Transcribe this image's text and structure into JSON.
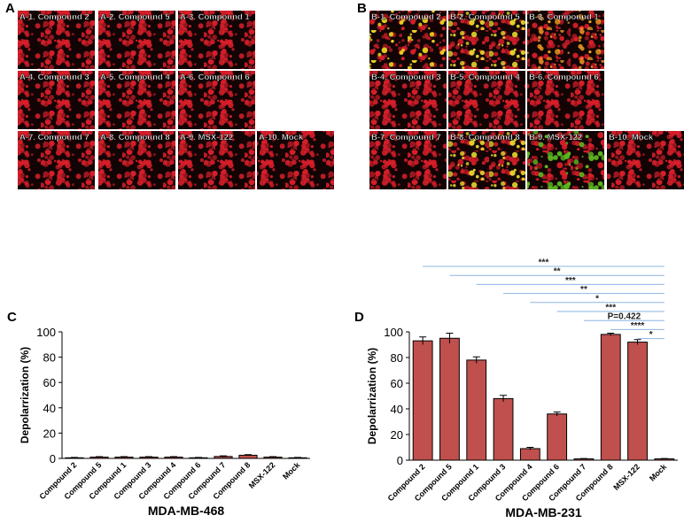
{
  "image_panels": [
    {
      "letter": "A",
      "images": [
        {
          "label": "A-1. Compound 2",
          "color": "#d81e2a"
        },
        {
          "label": "A-2. Compound 5",
          "color": "#d81e2a"
        },
        {
          "label": "A-3. Compound 1",
          "color": "#d81e2a"
        },
        {
          "label": "A-4. Compound 3",
          "color": "#d81e2a"
        },
        {
          "label": "A-5. Compound 4",
          "color": "#d81e2a"
        },
        {
          "label": "A-6. Compound 6",
          "color": "#d81e2a"
        },
        {
          "label": "A-7. Compound 7",
          "color": "#d81e2a"
        },
        {
          "label": "A-8. Compound 8",
          "color": "#d81e2a"
        },
        {
          "label": "A-9. MSX-122",
          "color": "#d81e2a"
        },
        {
          "label": "A-10. Mock",
          "color": "#d81e2a"
        }
      ]
    },
    {
      "letter": "B",
      "images": [
        {
          "label": "B-1. Compound 2",
          "color": "#e8d020"
        },
        {
          "label": "B-2. Compound 5",
          "color": "#f0e030"
        },
        {
          "label": "B-3. Compound 1",
          "color": "#f09a20"
        },
        {
          "label": "B-4. Compound 3",
          "color": "#d81e2a"
        },
        {
          "label": "B-5. Compound 4",
          "color": "#d81e2a"
        },
        {
          "label": "B-6. Compound 6",
          "color": "#d81e2a"
        },
        {
          "label": "B-7. Compound 7",
          "color": "#d81e2a"
        },
        {
          "label": "B-8. Compound 8",
          "color": "#f0e030"
        },
        {
          "label": "B-9. MSX-122",
          "color": "#5cc020"
        },
        {
          "label": "B-10. Mock",
          "color": "#d81e2a"
        }
      ]
    }
  ],
  "chart_data": [
    {
      "type": "bar",
      "letter": "C",
      "xlabel": "MDA-MB-468",
      "ylabel": "Depolarrization (%)",
      "categories": [
        "Compound 2",
        "Compound 5",
        "Compound 1",
        "Compound 3",
        "Compound 4",
        "Compound 6",
        "Compound 7",
        "Compound 8",
        "MSX-122",
        "Mock"
      ],
      "values": [
        0.5,
        1,
        1,
        1,
        1,
        0.5,
        1.5,
        2.5,
        1,
        0.5
      ],
      "errors": [
        0.3,
        0.4,
        0.4,
        0.4,
        0.4,
        0.3,
        0.5,
        0.5,
        0.4,
        0.3
      ],
      "color": "#c0504d",
      "ylim": [
        0,
        100
      ],
      "yticks": [
        0,
        20,
        40,
        60,
        80,
        100
      ]
    },
    {
      "type": "bar",
      "letter": "D",
      "xlabel": "MDA-MB-231",
      "ylabel": "Depolarrization (%)",
      "categories": [
        "Compound 2",
        "Compound 5",
        "Compound 1",
        "Compound 3",
        "Compound 4",
        "Compound 6",
        "Compound 7",
        "Compound 8",
        "MSX-122",
        "Mock"
      ],
      "values": [
        93,
        95,
        78,
        48,
        9,
        36,
        1,
        98,
        92,
        1
      ],
      "errors": [
        3,
        4,
        2.5,
        2.5,
        1,
        1.5,
        0.3,
        1,
        2,
        0.3
      ],
      "color": "#c0504d",
      "ylim": [
        0,
        100
      ],
      "yticks": [
        0,
        20,
        40,
        60,
        80,
        100
      ],
      "comparisons": [
        {
          "from": 0,
          "to": 9,
          "label": "***"
        },
        {
          "from": 1,
          "to": 9,
          "label": "**"
        },
        {
          "from": 2,
          "to": 9,
          "label": "***"
        },
        {
          "from": 3,
          "to": 9,
          "label": "**"
        },
        {
          "from": 4,
          "to": 9,
          "label": "*"
        },
        {
          "from": 5,
          "to": 9,
          "label": "***"
        },
        {
          "from": 6,
          "to": 9,
          "label": "P=0.422"
        },
        {
          "from": 7,
          "to": 9,
          "label": "****"
        },
        {
          "from": 8,
          "to": 9,
          "label": "*"
        }
      ]
    }
  ]
}
